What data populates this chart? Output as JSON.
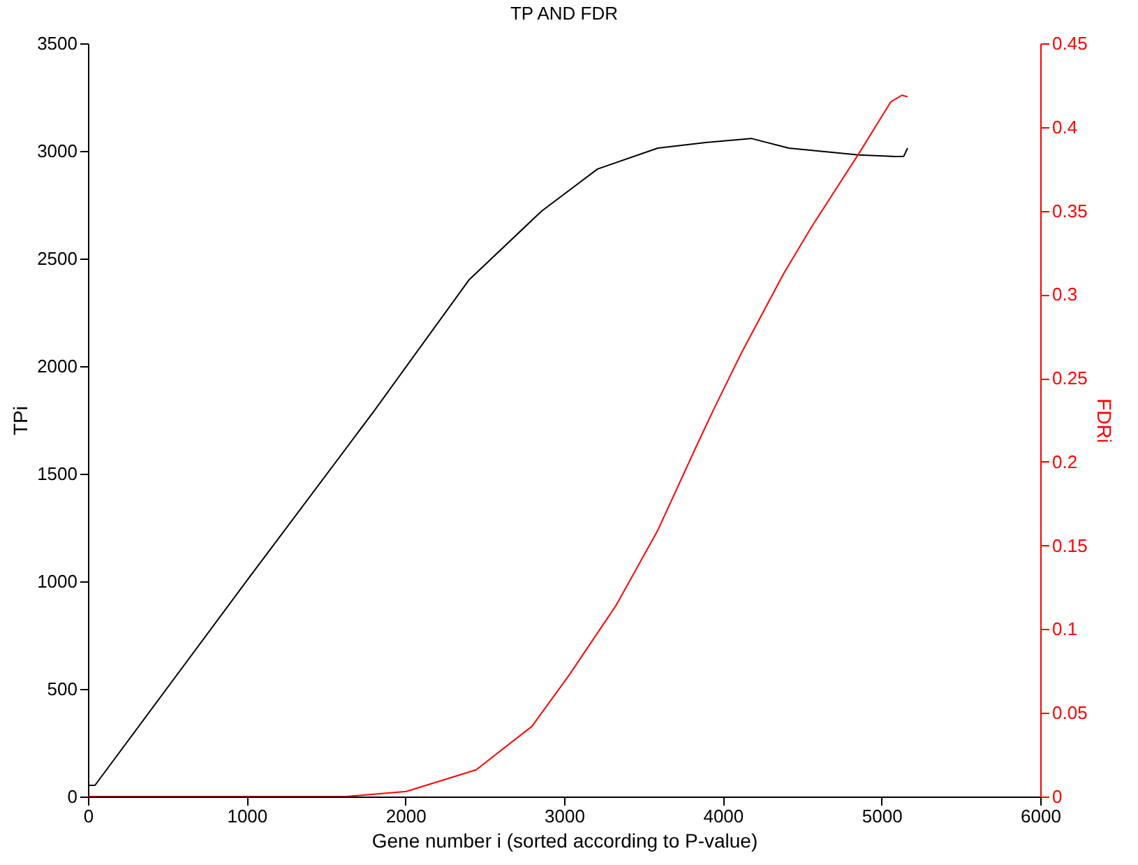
{
  "chart_data": {
    "type": "line",
    "title": "TP AND FDR",
    "xlabel": "Gene number i (sorted according to P-value)",
    "ylabel": "TPi",
    "y2label": "FDRi",
    "xlim": [
      0,
      6000
    ],
    "xticks": [
      0,
      1000,
      2000,
      3000,
      4000,
      5000,
      6000
    ],
    "ylim": [
      0,
      3500
    ],
    "yticks": [
      0,
      500,
      1000,
      1500,
      2000,
      2500,
      3000,
      3500
    ],
    "y2lim": [
      0,
      0.45
    ],
    "y2ticks": [
      0,
      0.05,
      0.1,
      0.15,
      0.2,
      0.25,
      0.3,
      0.35,
      0.4,
      0.45
    ],
    "grid": false,
    "marker": "none",
    "line_style": "solid",
    "series": [
      {
        "color": "#000000",
        "x": [
          0,
          44,
          1003,
          1803,
          2400,
          2859,
          3211,
          3590,
          3900,
          4179,
          4416,
          4856,
          5085,
          5140,
          5164
        ],
        "values": [
          52,
          52,
          1005,
          1792,
          2400,
          2721,
          2916,
          3013,
          3040,
          3058,
          3013,
          2981,
          2974,
          2975,
          3013
        ]
      },
      {
        "color": "#ff0000",
        "axis": "y2",
        "x": [
          0,
          1628,
          2006,
          2446,
          2798,
          3035,
          3326,
          3590,
          3827,
          3941,
          4117,
          4381,
          4557,
          4856,
          5058,
          5129,
          5164
        ],
        "values": [
          0,
          0,
          0.003,
          0.016,
          0.042,
          0.073,
          0.114,
          0.159,
          0.208,
          0.231,
          0.265,
          0.312,
          0.34,
          0.384,
          0.415,
          0.419,
          0.418
        ]
      }
    ]
  }
}
